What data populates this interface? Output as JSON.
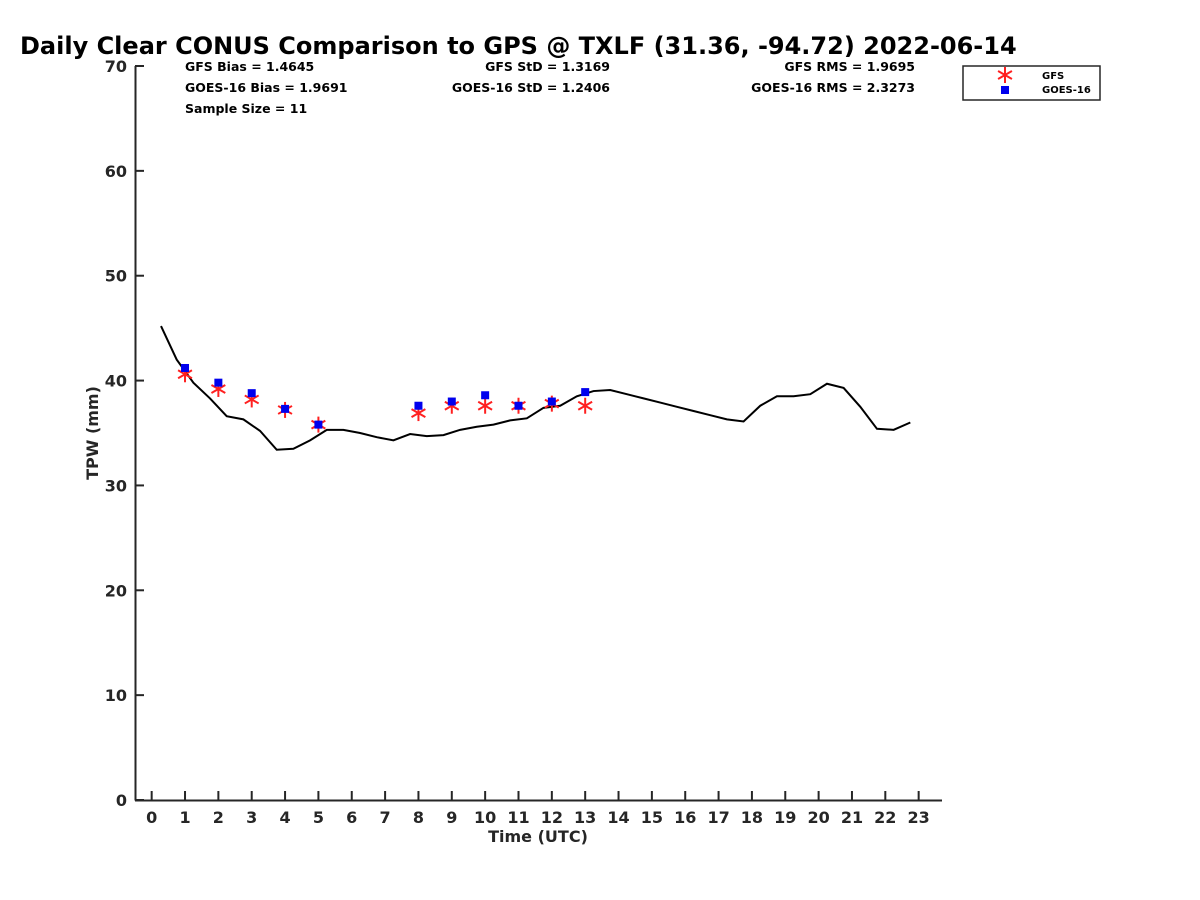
{
  "chart_data": {
    "type": "line",
    "title": "Daily Clear CONUS Comparison to GPS @ TXLF (31.36, -94.72) 2022-06-14",
    "xlabel": "Time (UTC)",
    "ylabel": "TPW (mm)",
    "xlim": [
      -0.5,
      23.7
    ],
    "ylim": [
      0,
      70
    ],
    "xticks": [
      0,
      1,
      2,
      3,
      4,
      5,
      6,
      7,
      8,
      9,
      10,
      11,
      12,
      13,
      14,
      15,
      16,
      17,
      18,
      19,
      20,
      21,
      22,
      23
    ],
    "yticks": [
      0,
      10,
      20,
      30,
      40,
      50,
      60,
      70
    ],
    "grid": false,
    "legend_position": "top-right",
    "stats": {
      "gfs_bias": "GFS Bias = 1.4645",
      "goes_bias": "GOES-16 Bias = 1.9691",
      "sample_size": "Sample Size = 11",
      "gfs_std": "GFS StD = 1.3169",
      "goes_std": "GOES-16 StD = 1.2406",
      "gfs_rms": "GFS RMS = 1.9695",
      "goes_rms": "GOES-16 RMS = 2.3273"
    },
    "series": [
      {
        "kind": "line",
        "color": "#000000",
        "x": [
          0.28,
          0.75,
          1.25,
          1.75,
          2.25,
          2.75,
          3.25,
          3.75,
          4.25,
          4.75,
          5.25,
          5.75,
          6.25,
          6.75,
          7.25,
          7.75,
          8.25,
          8.75,
          9.25,
          9.75,
          10.25,
          10.75,
          11.25,
          11.75,
          12.25,
          12.75,
          13.25,
          13.75,
          14.25,
          14.75,
          15.25,
          15.75,
          16.25,
          16.75,
          17.25,
          17.75,
          18.25,
          18.75,
          19.25,
          19.75,
          20.25,
          20.75,
          21.25,
          21.75,
          22.25,
          22.75
        ],
        "y": [
          45.2,
          42.0,
          39.8,
          38.3,
          36.6,
          36.3,
          35.2,
          33.4,
          33.5,
          34.3,
          35.3,
          35.3,
          35.0,
          34.6,
          34.3,
          34.9,
          34.7,
          34.8,
          35.3,
          35.6,
          35.8,
          36.2,
          36.4,
          37.4,
          37.6,
          38.5,
          39.0,
          39.1,
          38.7,
          38.3,
          37.9,
          37.5,
          37.1,
          36.7,
          36.3,
          36.1,
          37.6,
          38.5,
          38.5,
          38.7,
          39.7,
          39.3,
          37.5,
          35.4,
          35.3,
          36.0
        ]
      },
      {
        "name": "GFS",
        "kind": "scatter",
        "marker": "asterisk",
        "color": "#ff2020",
        "x": [
          1,
          2,
          3,
          4,
          5,
          8,
          9,
          10,
          11,
          12,
          13
        ],
        "y": [
          40.6,
          39.2,
          38.2,
          37.2,
          35.8,
          36.9,
          37.6,
          37.6,
          37.6,
          37.8,
          37.6
        ]
      },
      {
        "name": "GOES-16",
        "kind": "scatter",
        "marker": "square",
        "color": "#0000ee",
        "x": [
          1,
          2,
          3,
          4,
          5,
          8,
          9,
          10,
          11,
          12,
          13
        ],
        "y": [
          41.2,
          39.8,
          38.8,
          37.3,
          35.8,
          37.6,
          38.0,
          38.6,
          37.6,
          38.0,
          38.9
        ]
      }
    ]
  }
}
